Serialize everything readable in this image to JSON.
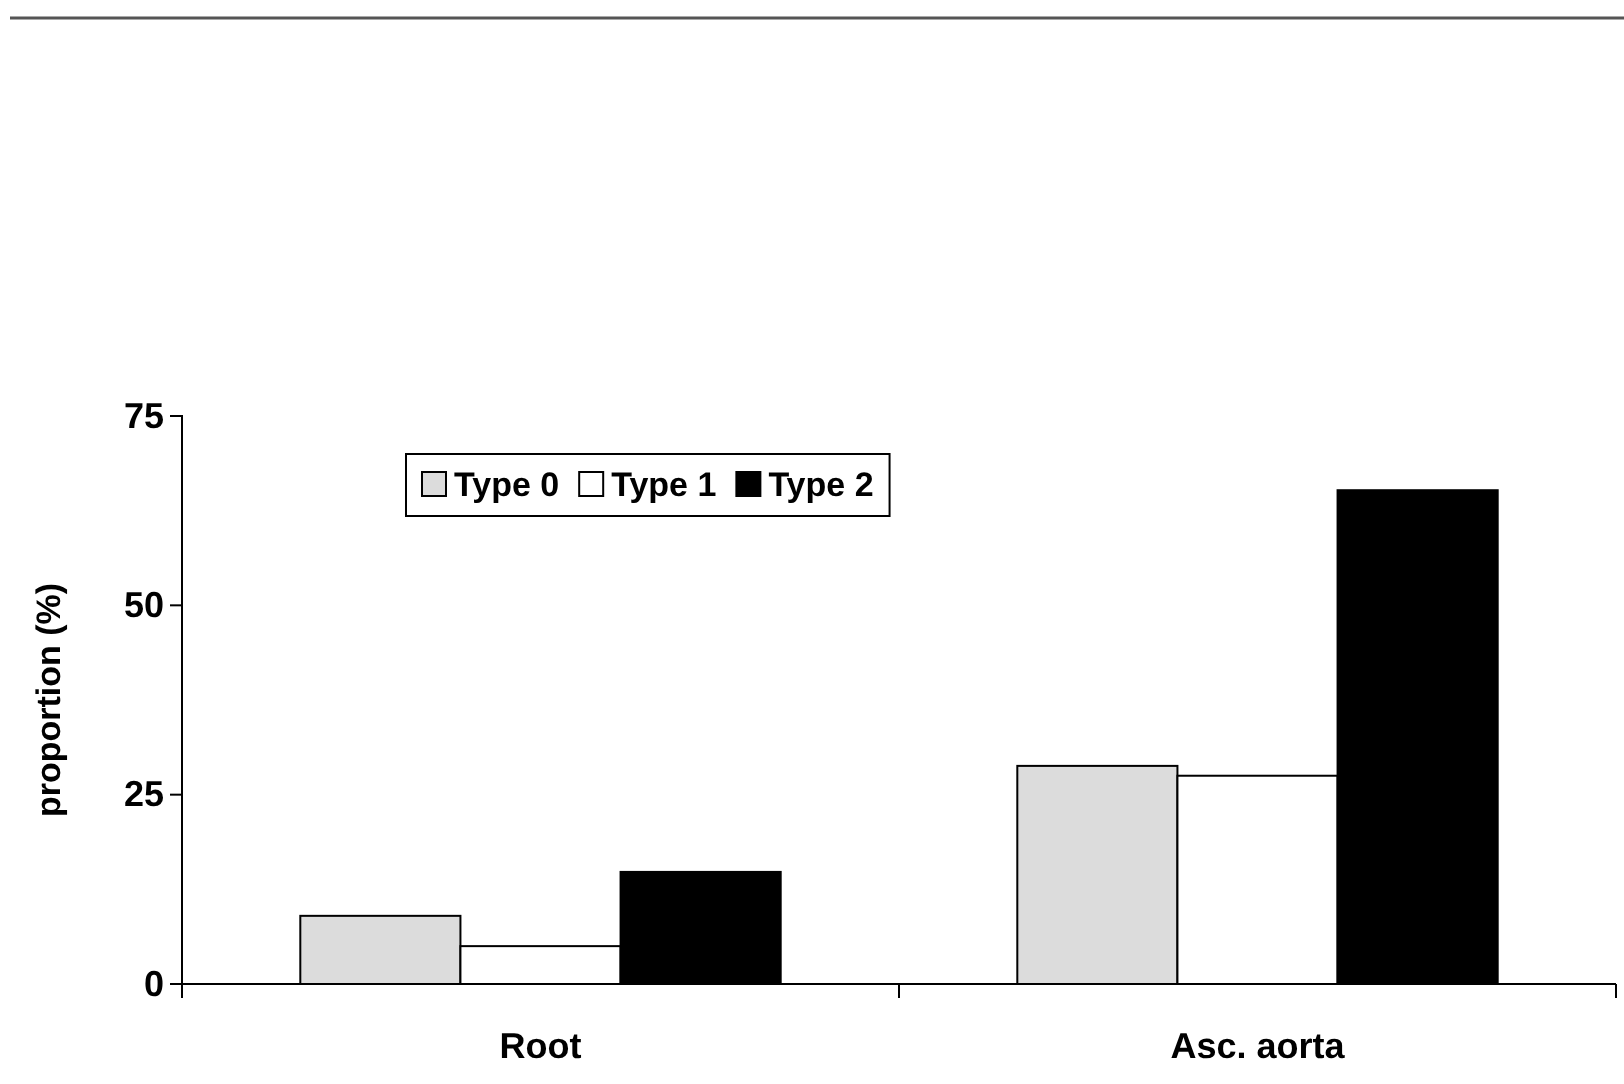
{
  "chart_data": {
    "type": "bar",
    "ylabel": "proportion (%)",
    "categories": [
      "Root",
      "Asc. aorta"
    ],
    "series": [
      {
        "name": "Type 0",
        "color": "#dcdcdc",
        "values": [
          9,
          28.8
        ]
      },
      {
        "name": "Type 1",
        "color": "#ffffff",
        "values": [
          5,
          27.5
        ]
      },
      {
        "name": "Type 2",
        "color": "#000000",
        "values": [
          14.8,
          65.2
        ]
      }
    ],
    "ylim": [
      0,
      75
    ],
    "yticks": [
      0,
      25,
      50,
      75
    ],
    "grid": false,
    "legend": "top"
  }
}
